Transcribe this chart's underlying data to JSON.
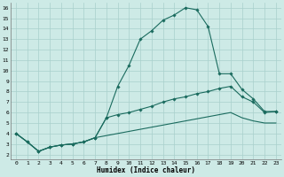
{
  "xlabel": "Humidex (Indice chaleur)",
  "bg_color": "#cdeae6",
  "grid_color": "#a8d0cc",
  "line_color": "#1a6b5e",
  "xlim": [
    -0.5,
    23.5
  ],
  "ylim": [
    1.5,
    16.5
  ],
  "xticks": [
    0,
    1,
    2,
    3,
    4,
    5,
    6,
    7,
    8,
    9,
    10,
    11,
    12,
    13,
    14,
    15,
    16,
    17,
    18,
    19,
    20,
    21,
    22,
    23
  ],
  "yticks": [
    2,
    3,
    4,
    5,
    6,
    7,
    8,
    9,
    10,
    11,
    12,
    13,
    14,
    15,
    16
  ],
  "series1_x": [
    0,
    1,
    2,
    3,
    4,
    5,
    6,
    7,
    8,
    9,
    10,
    11,
    12,
    13,
    14,
    15,
    16,
    17,
    18,
    19,
    20,
    21,
    22,
    23
  ],
  "series1_y": [
    4.0,
    3.2,
    2.3,
    2.7,
    2.9,
    3.0,
    3.2,
    3.6,
    5.5,
    8.5,
    10.5,
    13.0,
    13.8,
    14.8,
    15.3,
    16.0,
    15.8,
    14.2,
    9.7,
    9.7,
    8.2,
    7.3,
    6.1,
    6.1
  ],
  "series2_x": [
    0,
    1,
    2,
    3,
    4,
    5,
    6,
    7,
    8,
    9,
    10,
    11,
    12,
    13,
    14,
    15,
    16,
    17,
    18,
    19,
    20,
    21,
    22,
    23
  ],
  "series2_y": [
    4.0,
    3.2,
    2.3,
    2.7,
    2.9,
    3.0,
    3.2,
    3.6,
    5.5,
    5.8,
    6.0,
    6.3,
    6.6,
    7.0,
    7.3,
    7.5,
    7.8,
    8.0,
    8.3,
    8.5,
    7.5,
    7.0,
    6.0,
    6.1
  ],
  "series3_x": [
    0,
    1,
    2,
    3,
    4,
    5,
    6,
    7,
    8,
    9,
    10,
    11,
    12,
    13,
    14,
    15,
    16,
    17,
    18,
    19,
    20,
    21,
    22,
    23
  ],
  "series3_y": [
    4.0,
    3.2,
    2.3,
    2.7,
    2.9,
    3.0,
    3.2,
    3.6,
    3.8,
    4.0,
    4.2,
    4.4,
    4.6,
    4.8,
    5.0,
    5.2,
    5.4,
    5.6,
    5.8,
    6.0,
    5.5,
    5.2,
    5.0,
    5.0
  ]
}
